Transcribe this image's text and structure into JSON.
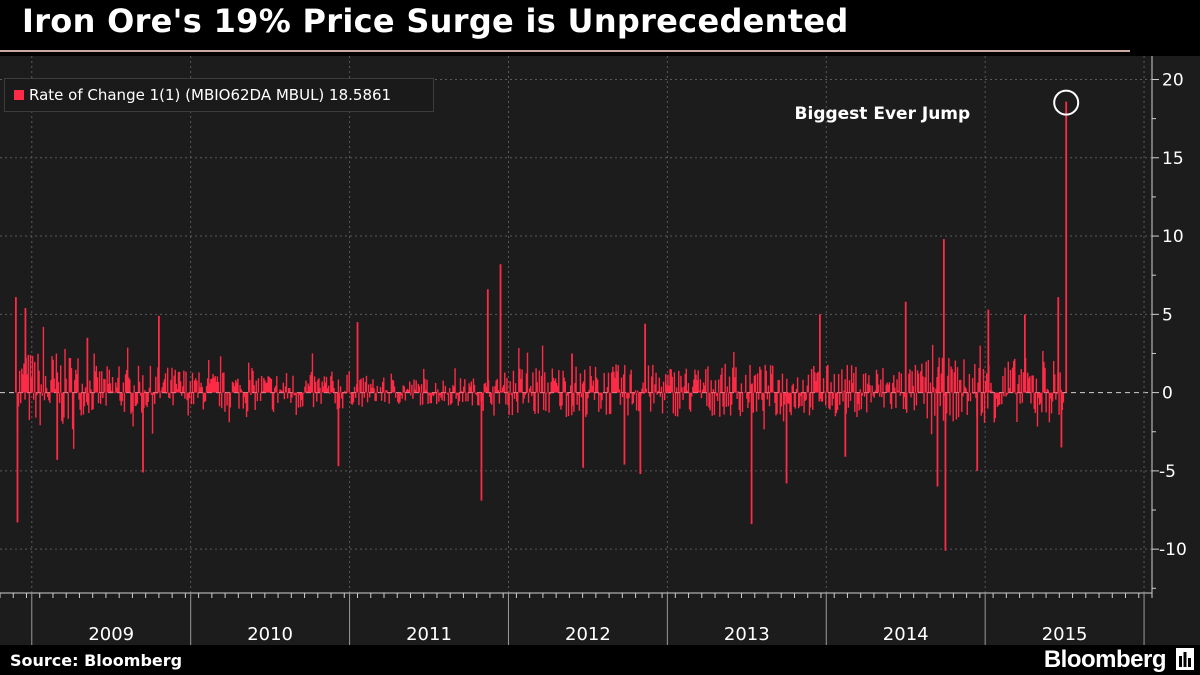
{
  "title": "Iron Ore's 19% Price Surge is Unprecedented",
  "legend": {
    "label": "Rate of Change 1(1) (MBIO62DA MBUL) 18.5861"
  },
  "annotation": "Biggest Ever Jump",
  "footer": {
    "source": "Source: Bloomberg",
    "brand": "Bloomberg"
  },
  "colors": {
    "series": "#ff2a46",
    "background": "#1c1c1c",
    "grid": "#5a5a5a",
    "circle": "#ffffff"
  },
  "chart_data": {
    "type": "bar",
    "title": "Iron Ore's 19% Price Surge is Unprecedented",
    "series": [
      {
        "name": "Rate of Change 1(1) (MBIO62DA MBUL)",
        "last_value": 18.5861,
        "points": [
          {
            "t": 2008.9,
            "v": 6.1
          },
          {
            "t": 2008.91,
            "v": -8.3
          },
          {
            "t": 2008.96,
            "v": 5.4
          },
          {
            "t": 2009.16,
            "v": -4.3
          },
          {
            "t": 2009.35,
            "v": 3.5
          },
          {
            "t": 2009.7,
            "v": -5.1
          },
          {
            "t": 2009.8,
            "v": 4.9
          },
          {
            "t": 2010.93,
            "v": -4.7
          },
          {
            "t": 2011.05,
            "v": 4.5
          },
          {
            "t": 2011.83,
            "v": -6.9
          },
          {
            "t": 2011.87,
            "v": 6.6
          },
          {
            "t": 2011.95,
            "v": 8.2
          },
          {
            "t": 2012.4,
            "v": 2.5
          },
          {
            "t": 2012.47,
            "v": -4.8
          },
          {
            "t": 2012.73,
            "v": -4.6
          },
          {
            "t": 2012.83,
            "v": -5.2
          },
          {
            "t": 2012.86,
            "v": 4.4
          },
          {
            "t": 2013.53,
            "v": -8.4
          },
          {
            "t": 2013.75,
            "v": -5.8
          },
          {
            "t": 2013.96,
            "v": 5.0
          },
          {
            "t": 2014.12,
            "v": -4.1
          },
          {
            "t": 2014.5,
            "v": 5.8
          },
          {
            "t": 2014.7,
            "v": -6.0
          },
          {
            "t": 2014.74,
            "v": 9.8
          },
          {
            "t": 2014.75,
            "v": -10.1
          },
          {
            "t": 2014.95,
            "v": -5.0
          },
          {
            "t": 2015.02,
            "v": 5.3
          },
          {
            "t": 2015.25,
            "v": 5.0
          },
          {
            "t": 2015.46,
            "v": 6.1
          },
          {
            "t": 2015.48,
            "v": -3.5
          },
          {
            "t": 2015.51,
            "v": 18.5861
          }
        ]
      }
    ],
    "x": {
      "labels": [
        "2009",
        "2010",
        "2011",
        "2012",
        "2013",
        "2014",
        "2015"
      ],
      "range": [
        2008.8,
        2016.05
      ]
    },
    "y": {
      "ticks": [
        20,
        15,
        10,
        5,
        0,
        -5,
        -10
      ],
      "ylim": [
        -12.8,
        21.5
      ],
      "side": "right"
    },
    "grid": true,
    "legend_position": "top-left",
    "annotations": [
      {
        "text": "Biggest Ever Jump",
        "t": 2015.51,
        "v": 18.5861,
        "marker": "circle"
      }
    ]
  }
}
